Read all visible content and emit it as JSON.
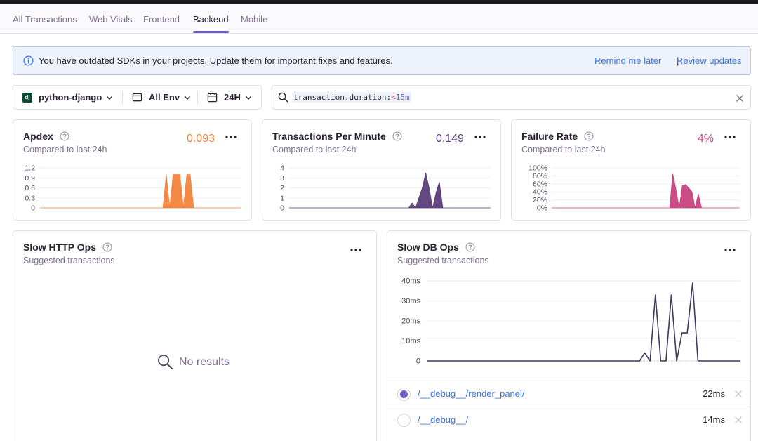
{
  "tabs": [
    {
      "label": "All Transactions"
    },
    {
      "label": "Web Vitals"
    },
    {
      "label": "Frontend"
    },
    {
      "label": "Backend",
      "active": true
    },
    {
      "label": "Mobile"
    }
  ],
  "alert": {
    "message": "You have outdated SDKs in your projects. Update them for important fixes and features.",
    "remind_label": "Remind me later",
    "separator": "|",
    "review_label": "Review updates"
  },
  "filters": {
    "project": "python-django",
    "project_logo": "dj",
    "environment": "All Env",
    "period": "24H"
  },
  "search": {
    "key": "transaction.duration",
    "colon": ":",
    "operator": "<",
    "value": "15m"
  },
  "cards": {
    "apdex": {
      "title": "Apdex",
      "subtitle": "Compared to last 24h",
      "value": "0.093",
      "color": "#f2833a"
    },
    "tpm": {
      "title": "Transactions Per Minute",
      "subtitle": "Compared to last 24h",
      "value": "0.149",
      "color": "#5b3e7a"
    },
    "failure": {
      "title": "Failure Rate",
      "subtitle": "Compared to last 24h",
      "value": "4%",
      "color": "#c9427e"
    }
  },
  "slow_http": {
    "title": "Slow HTTP Ops",
    "subtitle": "Suggested transactions",
    "empty": "No results"
  },
  "slow_db": {
    "title": "Slow DB Ops",
    "subtitle": "Suggested transactions",
    "rows": [
      {
        "name": "/__debug__/render_panel/",
        "duration": "22ms",
        "selected": true
      },
      {
        "name": "/__debug__/",
        "duration": "14ms",
        "selected": false
      }
    ]
  },
  "chart_data": [
    {
      "type": "area",
      "name": "apdex",
      "ylim": [
        0,
        1.2
      ],
      "y_ticks": [
        "1.2",
        "0.9",
        "0.6",
        "0.3",
        "0"
      ],
      "x": [
        0,
        1,
        2,
        3,
        4,
        5,
        6,
        7,
        8,
        9,
        10,
        11,
        12,
        13,
        14,
        15,
        16,
        17,
        18,
        19,
        20,
        21,
        22,
        23,
        24,
        25,
        26,
        27,
        28,
        29,
        30,
        31,
        32,
        33,
        34,
        35,
        36,
        37,
        38,
        39,
        40,
        41,
        42,
        43,
        44,
        45,
        46,
        47,
        48,
        49,
        50,
        51,
        52,
        53,
        54,
        55,
        56,
        57,
        58,
        59
      ],
      "values": [
        0,
        0,
        0,
        0,
        0,
        0,
        0,
        0,
        0,
        0,
        0,
        0,
        0,
        0,
        0,
        0,
        0,
        0,
        0,
        0,
        0,
        0,
        0,
        0,
        0,
        0,
        0,
        0,
        0,
        0,
        0,
        0,
        0,
        0,
        0,
        0,
        0,
        1,
        0,
        1,
        1,
        1,
        0,
        1,
        1,
        0,
        0,
        0,
        0,
        0,
        0,
        0,
        0,
        0,
        0,
        0,
        0,
        0,
        0,
        0
      ]
    },
    {
      "type": "area",
      "name": "tpm",
      "ylim": [
        0,
        4
      ],
      "y_ticks": [
        "4",
        "3",
        "2",
        "1",
        "0"
      ],
      "x": [
        0,
        1,
        2,
        3,
        4,
        5,
        6,
        7,
        8,
        9,
        10,
        11,
        12,
        13,
        14,
        15,
        16,
        17,
        18,
        19,
        20,
        21,
        22,
        23,
        24,
        25,
        26,
        27,
        28,
        29,
        30,
        31,
        32,
        33,
        34,
        35,
        36,
        37,
        38,
        39,
        40,
        41,
        42,
        43,
        44,
        45,
        46,
        47,
        48,
        49,
        50,
        51,
        52,
        53,
        54,
        55,
        56,
        57,
        58,
        59
      ],
      "values": [
        0,
        0,
        0,
        0,
        0,
        0,
        0,
        0,
        0,
        0,
        0,
        0,
        0,
        0,
        0,
        0,
        0,
        0,
        0,
        0,
        0,
        0,
        0,
        0,
        0,
        0,
        0,
        0,
        0,
        0,
        0,
        0,
        0,
        0,
        0,
        0,
        0.5,
        0,
        1,
        2,
        3.5,
        2,
        0,
        1.5,
        2.6,
        0,
        0,
        0,
        0,
        0,
        0,
        0,
        0,
        0,
        0,
        0,
        0,
        0,
        0,
        0
      ]
    },
    {
      "type": "area",
      "name": "failure_rate",
      "ylim": [
        0,
        100
      ],
      "y_ticks": [
        "100%",
        "80%",
        "60%",
        "40%",
        "20%",
        "0%"
      ],
      "x": [
        0,
        1,
        2,
        3,
        4,
        5,
        6,
        7,
        8,
        9,
        10,
        11,
        12,
        13,
        14,
        15,
        16,
        17,
        18,
        19,
        20,
        21,
        22,
        23,
        24,
        25,
        26,
        27,
        28,
        29,
        30,
        31,
        32,
        33,
        34,
        35,
        36,
        37,
        38,
        39,
        40,
        41,
        42,
        43,
        44,
        45,
        46,
        47,
        48,
        49,
        50,
        51,
        52,
        53,
        54,
        55,
        56,
        57,
        58,
        59
      ],
      "values": [
        0,
        0,
        0,
        0,
        0,
        0,
        0,
        0,
        0,
        0,
        0,
        0,
        0,
        0,
        0,
        0,
        0,
        0,
        0,
        0,
        0,
        0,
        0,
        0,
        0,
        0,
        0,
        0,
        0,
        0,
        0,
        0,
        0,
        0,
        0,
        0,
        0,
        0,
        85,
        45,
        0,
        55,
        58,
        50,
        40,
        0,
        35,
        0,
        0,
        0,
        0,
        0,
        0,
        0,
        0,
        0,
        0,
        0,
        0,
        0
      ]
    },
    {
      "type": "line",
      "name": "slow_db_ops",
      "ylim": [
        0,
        40
      ],
      "y_ticks": [
        "40ms",
        "30ms",
        "20ms",
        "10ms",
        "0"
      ],
      "x": [
        0,
        1,
        2,
        3,
        4,
        5,
        6,
        7,
        8,
        9,
        10,
        11,
        12,
        13,
        14,
        15,
        16,
        17,
        18,
        19,
        20,
        21,
        22,
        23,
        24,
        25,
        26,
        27,
        28,
        29,
        30,
        31,
        32,
        33,
        34,
        35,
        36,
        37,
        38,
        39,
        40,
        41,
        42,
        43,
        44,
        45,
        46,
        47,
        48,
        49,
        50,
        51,
        52,
        53,
        54,
        55,
        56,
        57,
        58,
        59
      ],
      "values": [
        0,
        0,
        0,
        0,
        0,
        0,
        0,
        0,
        0,
        0,
        0,
        0,
        0,
        0,
        0,
        0,
        0,
        0,
        0,
        0,
        0,
        0,
        0,
        0,
        0,
        0,
        0,
        0,
        0,
        0,
        0,
        0,
        0,
        0,
        0,
        0,
        0,
        0,
        0,
        0,
        0,
        4,
        0,
        33,
        0,
        0,
        33,
        0,
        14,
        14,
        39,
        0,
        0,
        0,
        0,
        0,
        0,
        0,
        0,
        0
      ]
    }
  ]
}
